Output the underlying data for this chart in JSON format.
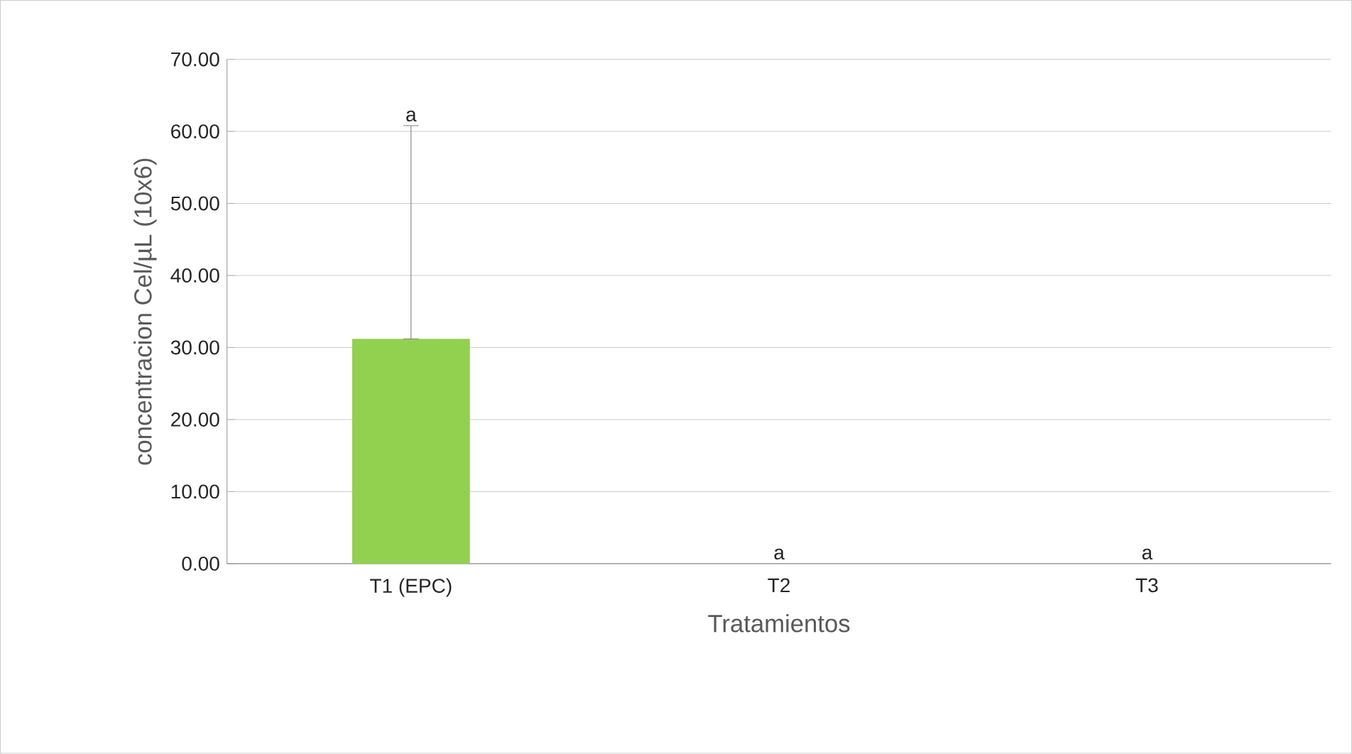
{
  "chart_data": {
    "type": "bar",
    "xlabel": "Tratamientos",
    "ylabel": "concentracion Cel/µL (10x6)",
    "categories": [
      "T1 (EPC)",
      "T2",
      "T3"
    ],
    "values": [
      31.2,
      0,
      0
    ],
    "color": "#92d050",
    "errors": [
      [
        31.2,
        60.8
      ],
      null,
      null
    ],
    "ylim": [
      0,
      70
    ],
    "yticks": [
      {
        "value": 0,
        "label": "0.00"
      },
      {
        "value": 10,
        "label": "10.00"
      },
      {
        "value": 20,
        "label": "20.00"
      },
      {
        "value": 30,
        "label": "30.00"
      },
      {
        "value": 40,
        "label": "40.00"
      },
      {
        "value": 50,
        "label": "50.00"
      },
      {
        "value": 60,
        "label": "60.00"
      },
      {
        "value": 70,
        "label": "70.00"
      }
    ],
    "grid": "y",
    "annotations": [
      "a",
      "a",
      "a"
    ]
  }
}
